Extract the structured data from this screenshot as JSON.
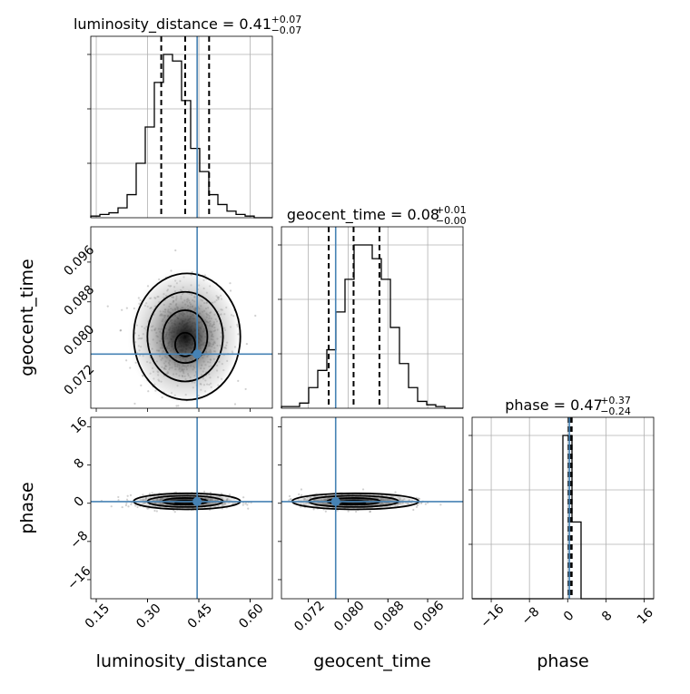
{
  "chart_data": {
    "type": "corner",
    "parameters": [
      {
        "name": "luminosity_distance",
        "xlabel": "luminosity_distance",
        "range": [
          0.134,
          0.665
        ],
        "ticks": [
          0.15,
          0.3,
          0.45,
          0.6
        ],
        "tick_labels": [
          "0.15",
          "0.30",
          "0.45",
          "0.60"
        ],
        "median": 0.41,
        "q_low": 0.34,
        "q_high": 0.48,
        "truth": 0.445,
        "title_main": "luminosity_distance = 0.41",
        "title_sup": "+0.07",
        "title_sub": "−0.07"
      },
      {
        "name": "geocent_time",
        "xlabel": "geocent_time",
        "ylabel": "geocent_time",
        "range": [
          0.0666,
          0.1031
        ],
        "ticks": [
          0.072,
          0.08,
          0.088,
          0.096
        ],
        "tick_labels": [
          "0.072",
          "0.080",
          "0.088",
          "0.096"
        ],
        "median": 0.0811,
        "q_low": 0.0761,
        "q_high": 0.0863,
        "truth": 0.0775,
        "title_main": "geocent_time = 0.08",
        "title_sup": "+0.01",
        "title_sub": "−0.00"
      },
      {
        "name": "phase",
        "xlabel": "phase",
        "ylabel": "phase",
        "range": [
          -20.0,
          18.0
        ],
        "ticks": [
          -16,
          -8,
          0,
          8,
          16
        ],
        "tick_labels": [
          "−16",
          "−8",
          "0",
          "8",
          "16"
        ],
        "median": 0.47,
        "q_low": 0.23,
        "q_high": 0.84,
        "truth": 0.35,
        "title_main": "phase = 0.47",
        "title_sup": "+0.37",
        "title_sub": "−0.24"
      }
    ],
    "histograms": [
      {
        "param": "luminosity_distance",
        "bins": 20,
        "counts": [
          1,
          2,
          3,
          6,
          14,
          33,
          55,
          82,
          99,
          95,
          71,
          42,
          28,
          14,
          8,
          4,
          2,
          1,
          0,
          0
        ]
      },
      {
        "param": "geocent_time",
        "bins": 20,
        "counts": [
          1,
          1,
          3,
          12,
          22,
          34,
          56,
          75,
          95,
          95,
          87,
          75,
          47,
          26,
          12,
          4,
          2,
          1,
          0,
          0
        ]
      },
      {
        "param": "phase",
        "bins": 20,
        "counts": [
          0,
          0,
          0,
          0,
          0,
          0,
          0,
          0,
          0,
          0,
          100,
          47,
          0,
          0,
          0,
          0,
          0,
          0,
          0,
          0
        ]
      }
    ],
    "pairs": [
      {
        "x": "luminosity_distance",
        "y": "geocent_time",
        "center": [
          0.41,
          0.081
        ],
        "sigma": [
          0.065,
          0.0053
        ]
      },
      {
        "x": "luminosity_distance",
        "y": "phase",
        "center": [
          0.41,
          0.4
        ],
        "sigma": [
          0.065,
          0.7
        ]
      },
      {
        "x": "geocent_time",
        "y": "phase",
        "center": [
          0.0811,
          0.4
        ],
        "sigma": [
          0.0053,
          0.7
        ]
      }
    ]
  }
}
